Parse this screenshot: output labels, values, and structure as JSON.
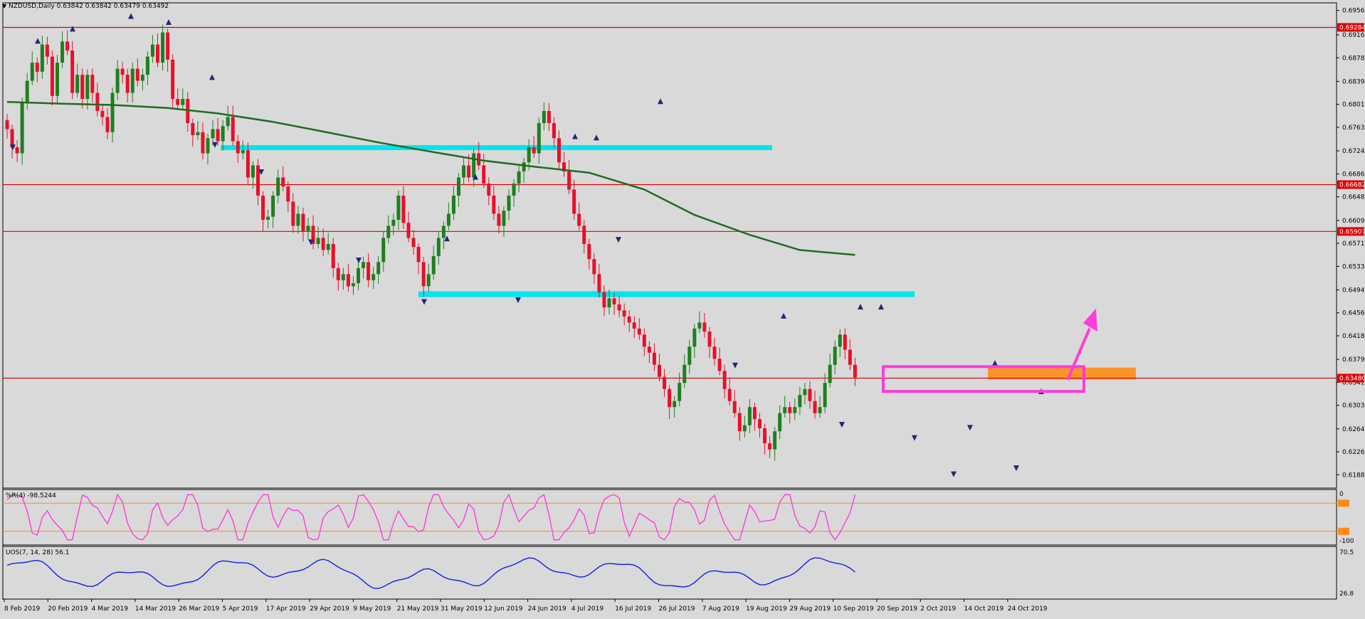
{
  "header": {
    "symbol": "NZDUSD,Daily",
    "ohlc": "0.63842 0.63842 0.63479 0.63492"
  },
  "colors": {
    "background": "#d9d9d9",
    "bull": "#1f7f1f",
    "bear": "#e8102a",
    "ma": "#1f6b1f",
    "support_zone": "#00e5ef",
    "hline": "#e00000",
    "box": "#ff3cdc",
    "orange_zone": "#ff8c1a",
    "wr": "#ff33dd",
    "uos": "#1020e0"
  },
  "chart_data": [
    {
      "type": "candlestick",
      "title": "NZDUSD,Daily",
      "ylim": [
        0.6166,
        0.6969
      ],
      "y_ticks": [
        "0.69565",
        "0.69160",
        "0.68780",
        "0.68390",
        "0.68010",
        "0.67630",
        "0.67240",
        "0.66860",
        "0.66480",
        "0.66090",
        "0.65710",
        "0.65330",
        "0.64940",
        "0.64560",
        "0.64180",
        "0.63790",
        "0.63410",
        "0.63030",
        "0.62640",
        "0.62260",
        "0.61880"
      ],
      "x_labels": [
        "8 Feb 2019",
        "20 Feb 2019",
        "4 Mar 2019",
        "14 Mar 2019",
        "26 Mar 2019",
        "5 Apr 2019",
        "17 Apr 2019",
        "29 Apr 2019",
        "9 May 2019",
        "21 May 2019",
        "31 May 2019",
        "12 Jun 2019",
        "24 Jun 2019",
        "4 Jul 2019",
        "16 Jul 2019",
        "26 Jul 2019",
        "7 Aug 2019",
        "19 Aug 2019",
        "29 Aug 2019",
        "10 Sep 2019",
        "20 Sep 2019",
        "2 Oct 2019",
        "14 Oct 2019",
        "24 Oct 2019"
      ],
      "horizontal_levels": [
        {
          "value": 0.69284,
          "label": "0.69284"
        },
        {
          "value": 0.66682,
          "label": "0.66682"
        },
        {
          "value": 0.65907,
          "label": "0.65907"
        },
        {
          "value": 0.6348,
          "label": "0.63480"
        }
      ],
      "close": [
        0.676,
        0.673,
        0.672,
        0.6805,
        0.684,
        0.687,
        0.6855,
        0.69,
        0.688,
        0.6815,
        0.687,
        0.6905,
        0.689,
        0.682,
        0.685,
        0.681,
        0.685,
        0.682,
        0.679,
        0.678,
        0.6755,
        0.682,
        0.686,
        0.685,
        0.682,
        0.686,
        0.684,
        0.685,
        0.688,
        0.69,
        0.687,
        0.692,
        0.6875,
        0.681,
        0.68,
        0.681,
        0.677,
        0.675,
        0.6755,
        0.672,
        0.6745,
        0.676,
        0.674,
        0.6765,
        0.678,
        0.674,
        0.672,
        0.6725,
        0.668,
        0.67,
        0.665,
        0.661,
        0.6615,
        0.665,
        0.668,
        0.6665,
        0.664,
        0.66,
        0.662,
        0.659,
        0.66,
        0.657,
        0.658,
        0.656,
        0.657,
        0.653,
        0.651,
        0.652,
        0.65,
        0.6505,
        0.653,
        0.654,
        0.651,
        0.652,
        0.654,
        0.658,
        0.66,
        0.661,
        0.665,
        0.6605,
        0.658,
        0.6565,
        0.654,
        0.65,
        0.652,
        0.655,
        0.658,
        0.66,
        0.662,
        0.665,
        0.668,
        0.67,
        0.668,
        0.672,
        0.67,
        0.667,
        0.665,
        0.662,
        0.66,
        0.6625,
        0.665,
        0.667,
        0.669,
        0.6705,
        0.673,
        0.672,
        0.677,
        0.679,
        0.677,
        0.6745,
        0.6705,
        0.669,
        0.666,
        0.662,
        0.66,
        0.657,
        0.6545,
        0.652,
        0.649,
        0.6465,
        0.648,
        0.647,
        0.646,
        0.645,
        0.644,
        0.643,
        0.642,
        0.64,
        0.639,
        0.637,
        0.635,
        0.633,
        0.63,
        0.631,
        0.634,
        0.637,
        0.64,
        0.643,
        0.644,
        0.6425,
        0.64,
        0.638,
        0.636,
        0.633,
        0.631,
        0.629,
        0.626,
        0.627,
        0.63,
        0.628,
        0.6265,
        0.624,
        0.623,
        0.626,
        0.629,
        0.63,
        0.629,
        0.63,
        0.632,
        0.633,
        0.631,
        0.629,
        0.63,
        0.634,
        0.637,
        0.64,
        0.642,
        0.6395,
        0.637,
        0.6349
      ],
      "ma_period_values": [
        0.6805,
        0.6802,
        0.68,
        0.6795,
        0.6786,
        0.6772,
        0.6756,
        0.6738,
        0.6722,
        0.6708,
        0.6697,
        0.6688,
        0.666,
        0.6618,
        0.6585,
        0.656,
        0.6552
      ]
    },
    {
      "type": "line",
      "title": "%R(4) -98.5244",
      "ylim": [
        -100,
        0
      ],
      "y_ticks": [
        "0",
        "-20",
        "-80",
        "-100"
      ],
      "levels": [
        -20,
        -80
      ],
      "values": []
    },
    {
      "type": "line",
      "title": "UOS(7, 14, 28) 56.1",
      "ylim": [
        26.8,
        70.5
      ],
      "y_ticks": [
        "70.5",
        "26.8"
      ],
      "values": []
    }
  ]
}
